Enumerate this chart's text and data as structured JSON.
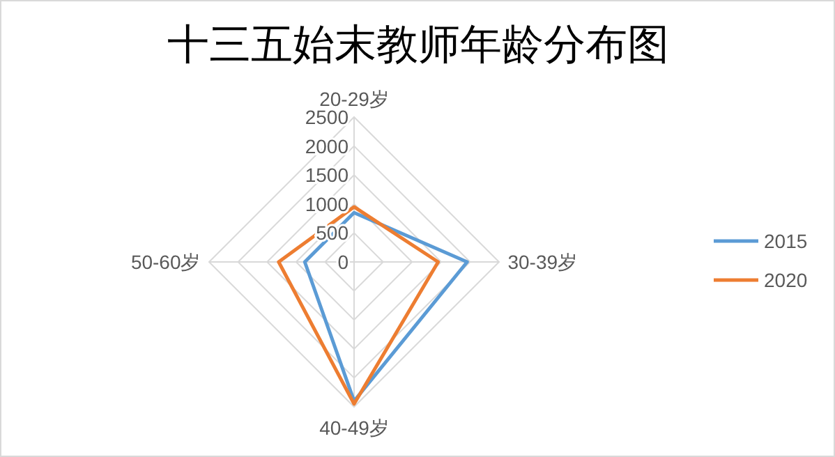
{
  "chart_data": {
    "type": "radar",
    "title": "十三五始末教师年龄分布图",
    "categories": [
      "20-29岁",
      "30-39岁",
      "40-49岁",
      "50-60岁"
    ],
    "series": [
      {
        "name": "2015",
        "color": "#5b9bd5",
        "values": [
          850,
          1950,
          2400,
          850
        ]
      },
      {
        "name": "2020",
        "color": "#ed7d31",
        "values": [
          950,
          1450,
          2450,
          1300
        ]
      }
    ],
    "ylim": [
      0,
      2500
    ],
    "yticks": [
      0,
      500,
      1000,
      1500,
      2000,
      2500
    ],
    "grid": true,
    "legend": "right"
  }
}
